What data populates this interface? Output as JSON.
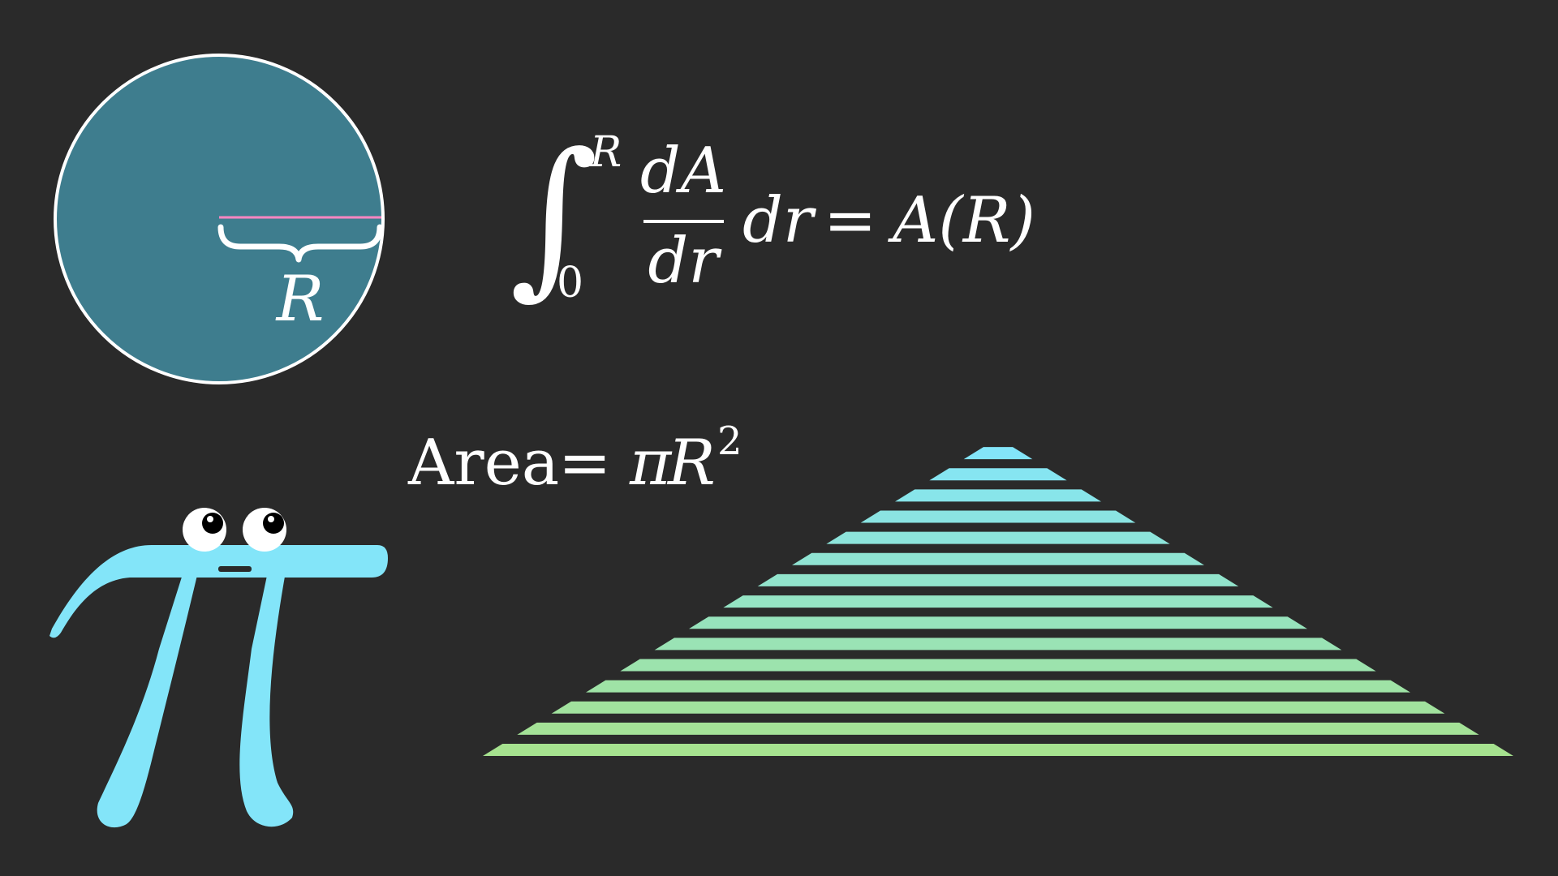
{
  "scene": {
    "background_color": "#2a2a2a",
    "circle": {
      "fill_color": "#3e7d8e",
      "stroke_color": "#ffffff",
      "radius_line_color": "#ff86c2",
      "radius_label": "R"
    },
    "integral_equation": {
      "upper_limit": "R",
      "lower_limit": "0",
      "numerator": "dA",
      "denominator": "dr",
      "differential": "dr",
      "equals": "=",
      "result": "A(R)"
    },
    "area_formula": {
      "word": "Area",
      "equals": "=",
      "pi": "π",
      "variable": "R",
      "exponent": "2"
    },
    "pi_creature": {
      "color": "#83e5f9",
      "eye_color": "#ffffff",
      "pupil_color": "#000000"
    },
    "ring_triangle": {
      "strip_count": 15,
      "top_color": "#83e5f9",
      "bottom_color": "#a6e28f"
    }
  }
}
